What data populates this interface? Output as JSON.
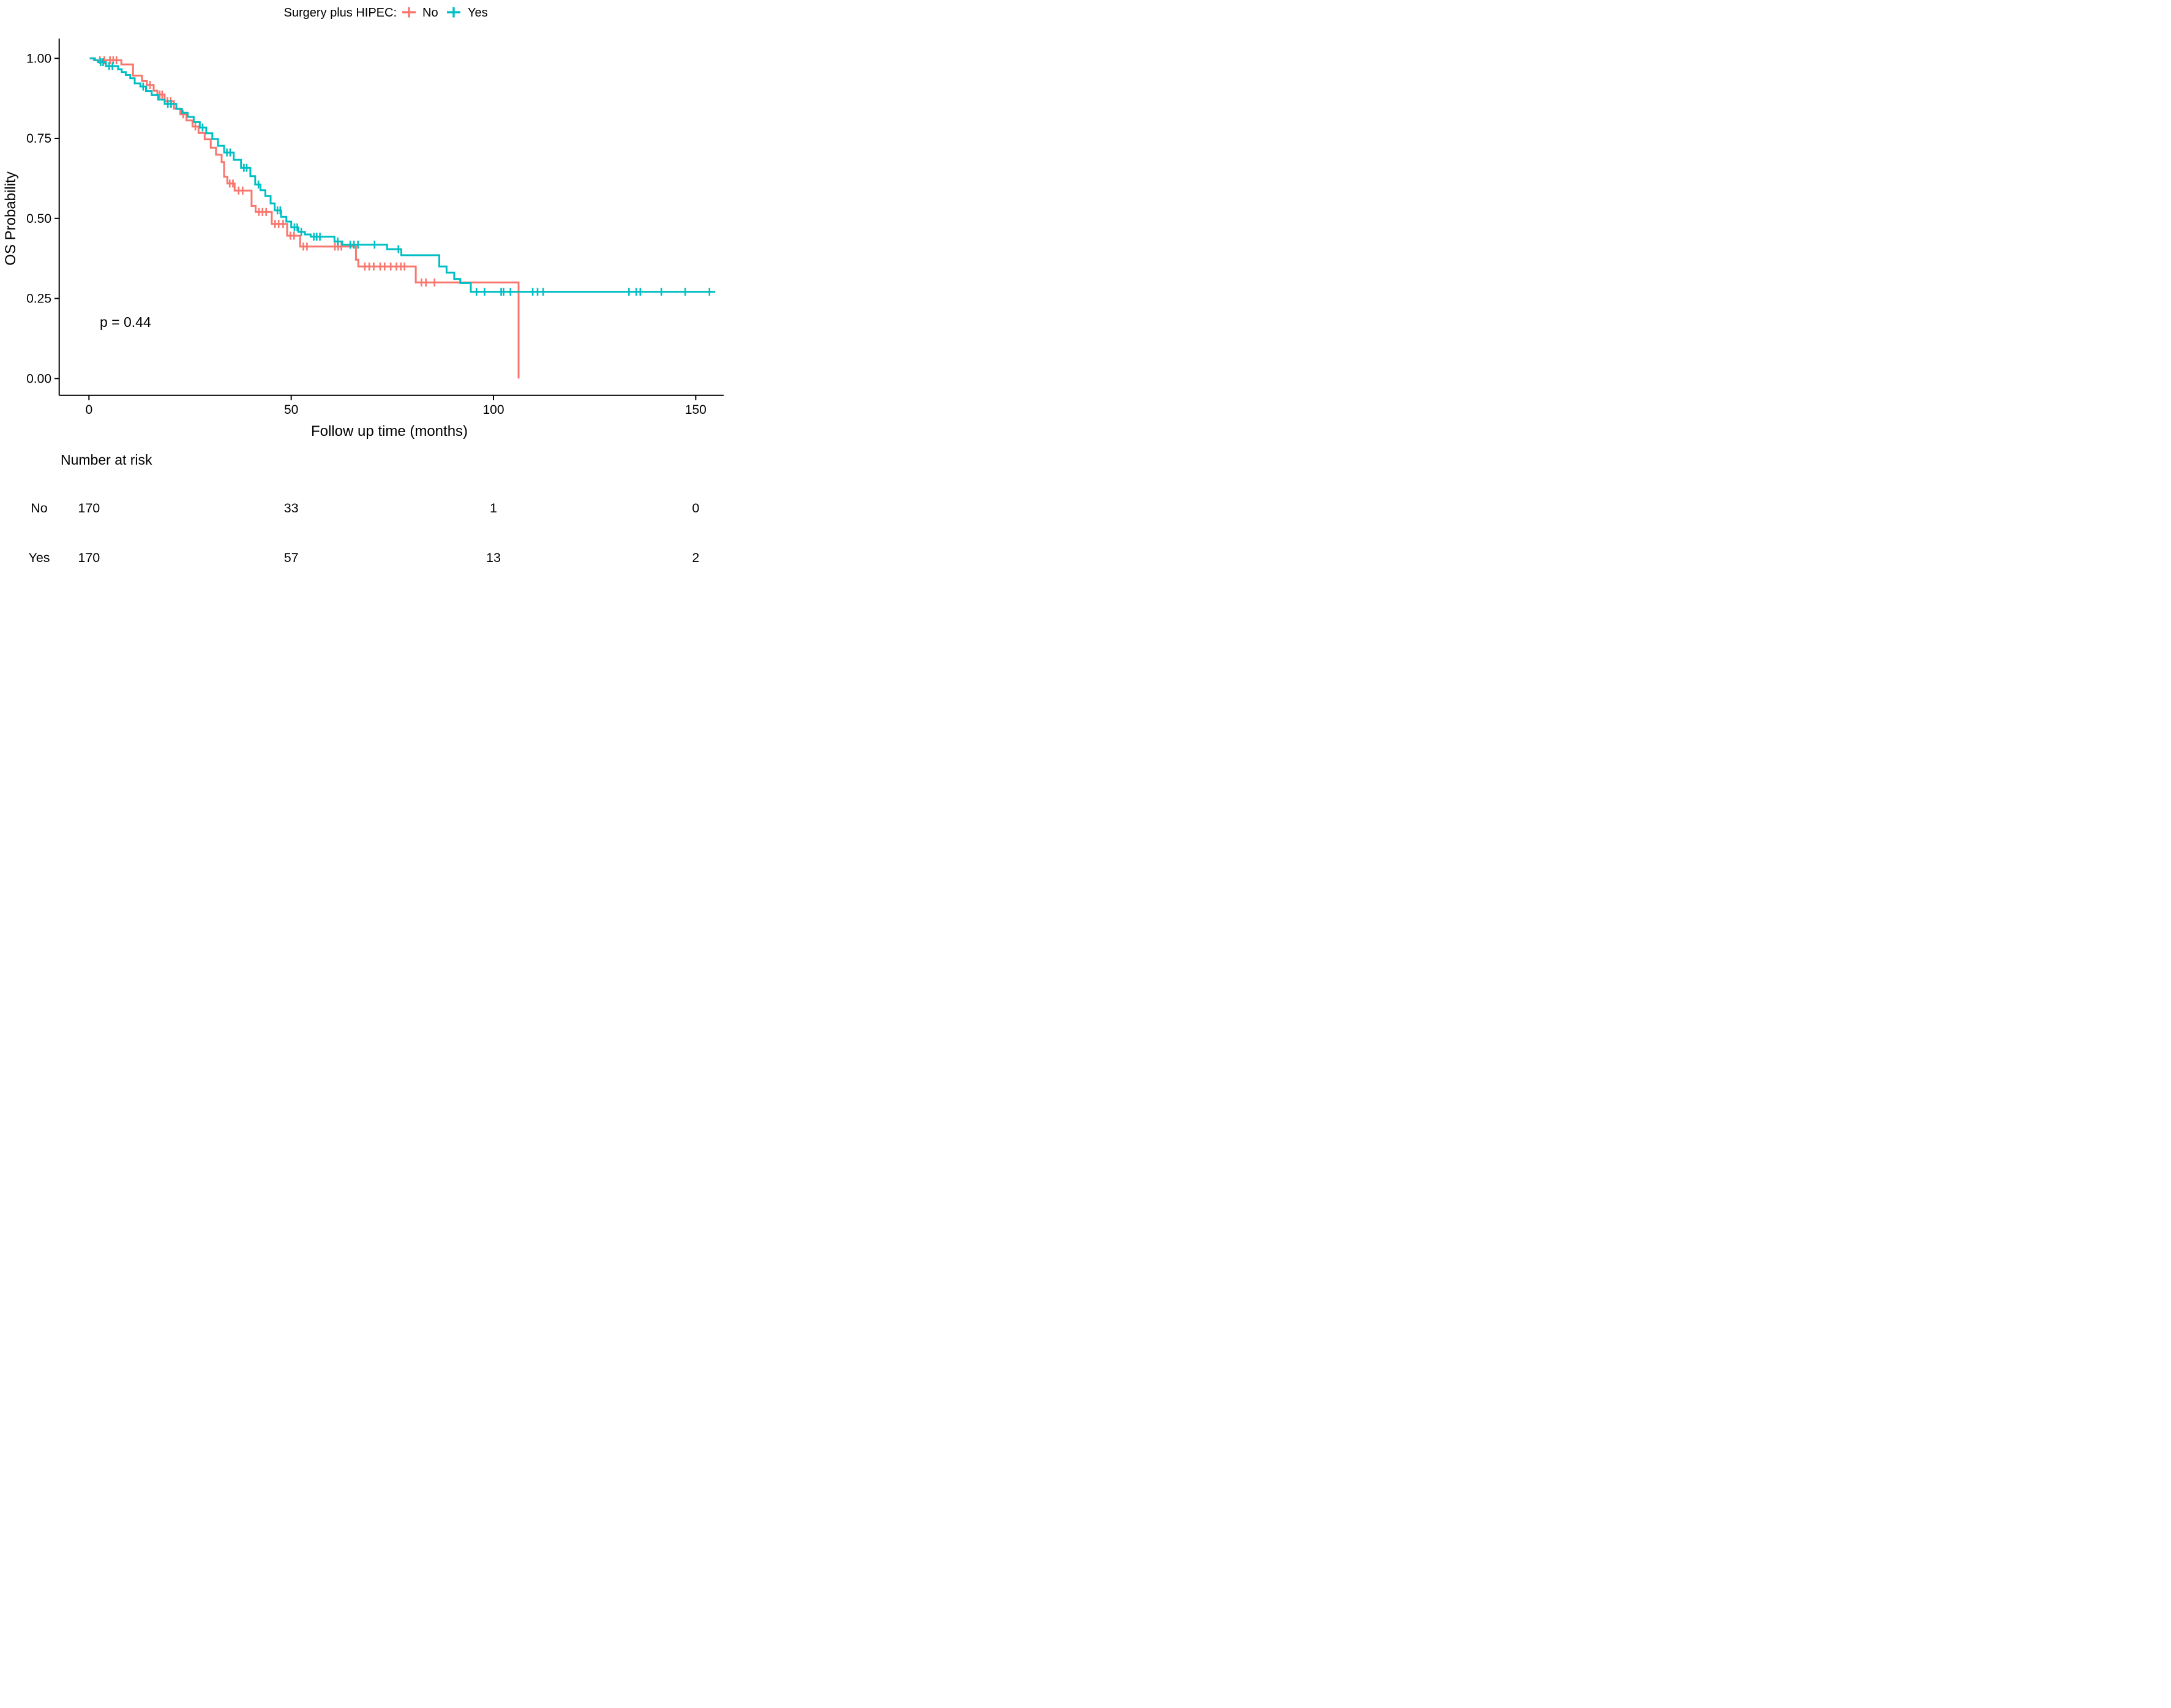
{
  "page": {
    "background": "#ffffff"
  },
  "legend": {
    "title": "Surgery plus HIPEC:",
    "items": [
      {
        "label": "No",
        "color": "#F8766D"
      },
      {
        "label": "Yes",
        "color": "#00BFC4"
      }
    ]
  },
  "axes": {
    "x": {
      "title": "Follow up time (months)",
      "ticks": [
        "0",
        "50",
        "100",
        "150"
      ],
      "tick_values": [
        0,
        50,
        100,
        150
      ],
      "range": [
        0,
        157
      ]
    },
    "y": {
      "title": "OS Probability",
      "ticks": [
        "0.00",
        "0.25",
        "0.50",
        "0.75",
        "1.00"
      ],
      "tick_values": [
        0,
        0.25,
        0.5,
        0.75,
        1.0
      ],
      "range": [
        0,
        1
      ]
    }
  },
  "annotation": {
    "p_value": "p = 0.44"
  },
  "risk_table": {
    "title": "Number at risk",
    "time_points": [
      0,
      50,
      100,
      150
    ],
    "rows": [
      {
        "label": "No",
        "color": "#F8766D",
        "values": [
          "170",
          "33",
          "1",
          "0"
        ]
      },
      {
        "label": "Yes",
        "color": "#00BFC4",
        "values": [
          "170",
          "57",
          "13",
          "2"
        ]
      }
    ]
  },
  "chart_data": {
    "type": "line",
    "subtype": "kaplan_meier_step",
    "title": "",
    "xlabel": "Follow up time (months)",
    "ylabel": "OS Probability",
    "xlim": [
      0,
      157
    ],
    "ylim": [
      0,
      1
    ],
    "grid": false,
    "legend_position": "top",
    "series": [
      {
        "name": "No",
        "color": "#F8766D",
        "steps": [
          [
            0.2,
            1.0
          ],
          [
            1.2,
            0.994
          ],
          [
            8.0,
            0.981
          ],
          [
            10.9,
            0.946
          ],
          [
            13.1,
            0.929
          ],
          [
            14.3,
            0.917
          ],
          [
            16.0,
            0.899
          ],
          [
            16.9,
            0.887
          ],
          [
            18.7,
            0.866
          ],
          [
            21.0,
            0.843
          ],
          [
            22.6,
            0.825
          ],
          [
            24.1,
            0.806
          ],
          [
            25.6,
            0.787
          ],
          [
            27.1,
            0.767
          ],
          [
            28.6,
            0.747
          ],
          [
            30.1,
            0.721
          ],
          [
            31.4,
            0.699
          ],
          [
            32.8,
            0.676
          ],
          [
            33.4,
            0.63
          ],
          [
            34.2,
            0.609
          ],
          [
            36.0,
            0.587
          ],
          [
            40.2,
            0.539
          ],
          [
            41.2,
            0.52
          ],
          [
            45.2,
            0.483
          ],
          [
            49.0,
            0.446
          ],
          [
            52.2,
            0.412
          ],
          [
            66.0,
            0.371
          ],
          [
            66.6,
            0.35
          ],
          [
            80.8,
            0.3
          ],
          [
            106.2,
            0.0
          ]
        ],
        "censors": [
          [
            2.7,
            0.994
          ],
          [
            3.8,
            0.994
          ],
          [
            5.2,
            0.994
          ],
          [
            6.0,
            0.994
          ],
          [
            6.8,
            0.994
          ],
          [
            15.1,
            0.917
          ],
          [
            17.5,
            0.887
          ],
          [
            18.1,
            0.887
          ],
          [
            19.4,
            0.866
          ],
          [
            20.2,
            0.866
          ],
          [
            23.3,
            0.825
          ],
          [
            26.3,
            0.787
          ],
          [
            34.8,
            0.609
          ],
          [
            35.6,
            0.609
          ],
          [
            37.0,
            0.587
          ],
          [
            38.0,
            0.587
          ],
          [
            42.0,
            0.52
          ],
          [
            42.9,
            0.52
          ],
          [
            43.8,
            0.52
          ],
          [
            46.0,
            0.483
          ],
          [
            46.9,
            0.483
          ],
          [
            48.0,
            0.483
          ],
          [
            49.8,
            0.446
          ],
          [
            50.7,
            0.446
          ],
          [
            53.0,
            0.412
          ],
          [
            53.9,
            0.412
          ],
          [
            60.8,
            0.412
          ],
          [
            61.6,
            0.412
          ],
          [
            62.4,
            0.412
          ],
          [
            68.2,
            0.35
          ],
          [
            69.3,
            0.35
          ],
          [
            70.4,
            0.35
          ],
          [
            72.0,
            0.35
          ],
          [
            73.1,
            0.35
          ],
          [
            74.6,
            0.35
          ],
          [
            76.0,
            0.35
          ],
          [
            77.1,
            0.35
          ],
          [
            78.0,
            0.35
          ],
          [
            82.2,
            0.3
          ],
          [
            83.3,
            0.3
          ],
          [
            85.4,
            0.3
          ]
        ]
      },
      {
        "name": "Yes",
        "color": "#00BFC4",
        "steps": [
          [
            0.2,
            1.0
          ],
          [
            1.5,
            0.994
          ],
          [
            2.2,
            0.988
          ],
          [
            4.2,
            0.976
          ],
          [
            7.2,
            0.966
          ],
          [
            8.1,
            0.957
          ],
          [
            9.1,
            0.948
          ],
          [
            10.2,
            0.938
          ],
          [
            11.3,
            0.922
          ],
          [
            12.7,
            0.912
          ],
          [
            14.1,
            0.898
          ],
          [
            15.5,
            0.885
          ],
          [
            17.1,
            0.871
          ],
          [
            18.7,
            0.858
          ],
          [
            21.6,
            0.842
          ],
          [
            23.0,
            0.83
          ],
          [
            24.4,
            0.817
          ],
          [
            25.9,
            0.801
          ],
          [
            27.4,
            0.784
          ],
          [
            29.0,
            0.766
          ],
          [
            30.5,
            0.748
          ],
          [
            31.9,
            0.727
          ],
          [
            33.4,
            0.706
          ],
          [
            35.8,
            0.683
          ],
          [
            37.6,
            0.658
          ],
          [
            39.9,
            0.632
          ],
          [
            41.1,
            0.606
          ],
          [
            42.4,
            0.588
          ],
          [
            43.6,
            0.57
          ],
          [
            44.9,
            0.547
          ],
          [
            45.9,
            0.525
          ],
          [
            47.5,
            0.505
          ],
          [
            48.8,
            0.49
          ],
          [
            50.0,
            0.472
          ],
          [
            51.8,
            0.458
          ],
          [
            53.4,
            0.45
          ],
          [
            54.8,
            0.443
          ],
          [
            60.7,
            0.428
          ],
          [
            62.6,
            0.418
          ],
          [
            73.7,
            0.404
          ],
          [
            77.2,
            0.385
          ],
          [
            86.6,
            0.35
          ],
          [
            88.4,
            0.331
          ],
          [
            90.3,
            0.311
          ],
          [
            91.8,
            0.298
          ],
          [
            94.4,
            0.271
          ],
          [
            154.8,
            0.271
          ]
        ],
        "censors": [
          [
            2.9,
            0.988
          ],
          [
            3.5,
            0.988
          ],
          [
            5.0,
            0.976
          ],
          [
            5.8,
            0.976
          ],
          [
            13.4,
            0.912
          ],
          [
            19.5,
            0.858
          ],
          [
            20.3,
            0.858
          ],
          [
            28.1,
            0.784
          ],
          [
            34.1,
            0.706
          ],
          [
            34.9,
            0.706
          ],
          [
            38.3,
            0.658
          ],
          [
            39.0,
            0.658
          ],
          [
            41.9,
            0.606
          ],
          [
            46.6,
            0.525
          ],
          [
            47.3,
            0.525
          ],
          [
            50.8,
            0.472
          ],
          [
            51.5,
            0.472
          ],
          [
            52.5,
            0.458
          ],
          [
            55.6,
            0.443
          ],
          [
            56.3,
            0.443
          ],
          [
            57.1,
            0.443
          ],
          [
            61.5,
            0.428
          ],
          [
            64.6,
            0.418
          ],
          [
            65.5,
            0.418
          ],
          [
            66.5,
            0.418
          ],
          [
            70.6,
            0.418
          ],
          [
            76.5,
            0.404
          ],
          [
            95.8,
            0.271
          ],
          [
            97.8,
            0.271
          ],
          [
            101.9,
            0.271
          ],
          [
            102.5,
            0.271
          ],
          [
            104.2,
            0.271
          ],
          [
            109.7,
            0.271
          ],
          [
            110.9,
            0.271
          ],
          [
            112.3,
            0.271
          ],
          [
            133.5,
            0.271
          ],
          [
            135.3,
            0.271
          ],
          [
            136.3,
            0.271
          ],
          [
            141.5,
            0.271
          ],
          [
            147.4,
            0.271
          ],
          [
            153.4,
            0.271
          ]
        ]
      }
    ]
  }
}
